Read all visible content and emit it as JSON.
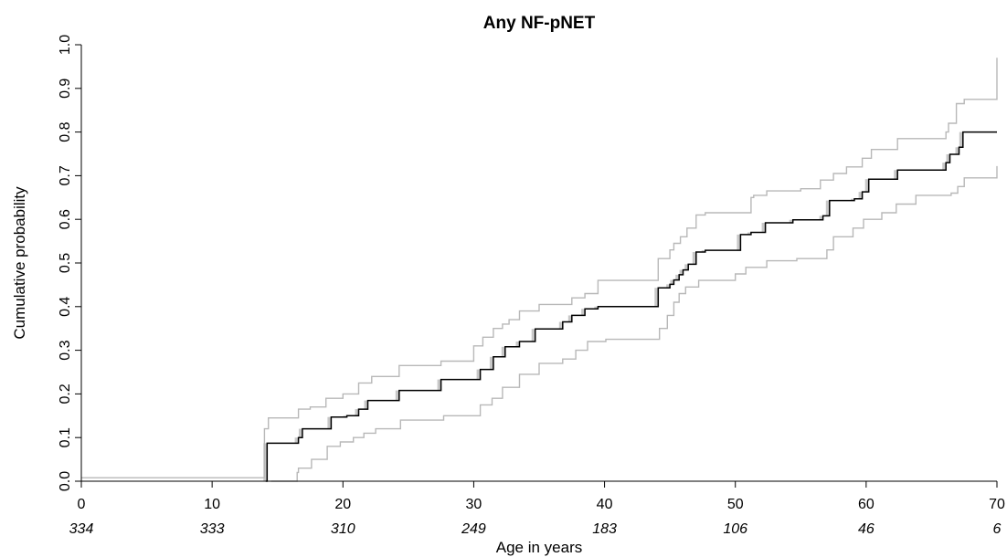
{
  "chart_data": {
    "type": "line",
    "title": "Any NF-pNET",
    "xlabel": "Age in years",
    "ylabel": "Cumulative probability",
    "xlim": [
      0,
      70
    ],
    "ylim": [
      0,
      1
    ],
    "x_ticks": [
      "0",
      "10",
      "20",
      "30",
      "40",
      "50",
      "60",
      "70"
    ],
    "y_ticks": [
      "0.0",
      "0.1",
      "0.2",
      "0.3",
      "0.4",
      "0.5",
      "0.6",
      "0.7",
      "0.8",
      "0.9",
      "1.0"
    ],
    "number_at_risk": [
      "334",
      "333",
      "310",
      "249",
      "183",
      "106",
      "46",
      "6"
    ],
    "grid": false,
    "legend": "none",
    "colors": {
      "estimate": "#000000",
      "ci": "#b8b8b8",
      "ci_fill": "#c8c8c8"
    },
    "series": [
      {
        "name": "",
        "style": "step",
        "x": [
          14.1,
          14.2,
          16.6,
          16.9,
          19.1,
          20.3,
          21.2,
          21.9,
          24.3,
          27.5,
          30.5,
          31.5,
          32.4,
          33.5,
          34.7,
          36.8,
          37.5,
          38.5,
          39.5,
          44.1,
          45.0,
          45.3,
          45.7,
          46.0,
          46.4,
          47.0,
          47.7,
          50.4,
          51.2,
          52.3,
          54.4,
          56.7,
          57.2,
          59.1,
          59.7,
          60.2,
          62.4,
          66.1,
          66.4,
          67.1,
          67.4,
          70.0
        ],
        "y": [
          0.0,
          0.087,
          0.1,
          0.12,
          0.147,
          0.15,
          0.165,
          0.185,
          0.208,
          0.233,
          0.256,
          0.285,
          0.308,
          0.32,
          0.349,
          0.365,
          0.38,
          0.395,
          0.4,
          0.443,
          0.451,
          0.461,
          0.473,
          0.484,
          0.497,
          0.525,
          0.529,
          0.565,
          0.57,
          0.592,
          0.599,
          0.608,
          0.643,
          0.647,
          0.663,
          0.692,
          0.713,
          0.73,
          0.749,
          0.765,
          0.8,
          0.8
        ]
      },
      {
        "name": "",
        "style": "step",
        "x": [
          0.0,
          14.0,
          14.3,
          16.6,
          17.5,
          18.7,
          20.0,
          21.2,
          22.2,
          24.3,
          27.5,
          30.0,
          30.7,
          31.5,
          32.2,
          32.7,
          33.5,
          35.0,
          37.5,
          38.5,
          39.5,
          44.1,
          45.0,
          45.3,
          45.8,
          46.3,
          47.0,
          47.7,
          51.2,
          51.4,
          52.4,
          55.0,
          56.5,
          57.5,
          58.5,
          59.7,
          60.4,
          62.4,
          66.1,
          66.3,
          66.9,
          67.5,
          70.0
        ],
        "y": [
          0.008,
          0.12,
          0.145,
          0.165,
          0.17,
          0.19,
          0.2,
          0.225,
          0.24,
          0.265,
          0.275,
          0.31,
          0.33,
          0.35,
          0.36,
          0.37,
          0.39,
          0.405,
          0.42,
          0.43,
          0.46,
          0.51,
          0.53,
          0.545,
          0.56,
          0.58,
          0.61,
          0.615,
          0.65,
          0.655,
          0.665,
          0.67,
          0.69,
          0.705,
          0.72,
          0.74,
          0.76,
          0.785,
          0.8,
          0.82,
          0.865,
          0.875,
          0.97
        ]
      },
      {
        "name": "",
        "style": "step",
        "x": [
          14.5,
          16.5,
          16.6,
          17.6,
          18.8,
          19.8,
          20.8,
          21.6,
          22.5,
          24.4,
          27.7,
          30.5,
          31.4,
          32.2,
          33.5,
          35.0,
          36.8,
          37.8,
          38.7,
          40.1,
          44.2,
          44.8,
          45.3,
          45.7,
          46.2,
          47.2,
          50.0,
          50.8,
          52.4,
          54.7,
          57.0,
          57.5,
          59.0,
          59.8,
          61.2,
          62.3,
          63.8,
          66.5,
          67.0,
          67.5,
          70.0
        ],
        "y": [
          0.0,
          0.02,
          0.03,
          0.05,
          0.08,
          0.09,
          0.1,
          0.11,
          0.12,
          0.14,
          0.15,
          0.175,
          0.19,
          0.215,
          0.245,
          0.27,
          0.28,
          0.3,
          0.32,
          0.325,
          0.35,
          0.38,
          0.41,
          0.43,
          0.445,
          0.46,
          0.475,
          0.49,
          0.505,
          0.51,
          0.53,
          0.56,
          0.58,
          0.6,
          0.615,
          0.635,
          0.655,
          0.66,
          0.675,
          0.695,
          0.722
        ]
      }
    ]
  }
}
